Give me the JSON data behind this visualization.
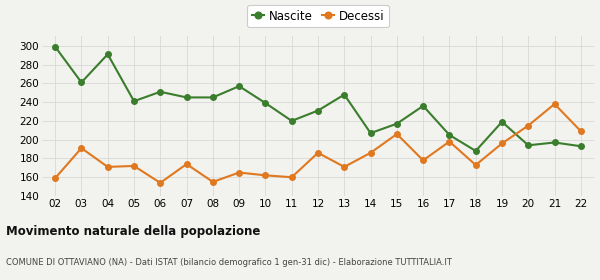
{
  "years": [
    "02",
    "03",
    "04",
    "05",
    "06",
    "07",
    "08",
    "09",
    "10",
    "11",
    "12",
    "13",
    "14",
    "15",
    "16",
    "17",
    "18",
    "19",
    "20",
    "21",
    "22"
  ],
  "nascite": [
    299,
    261,
    291,
    241,
    251,
    245,
    245,
    257,
    239,
    220,
    231,
    248,
    207,
    217,
    236,
    205,
    188,
    219,
    194,
    197,
    193
  ],
  "decessi": [
    159,
    191,
    171,
    172,
    154,
    174,
    155,
    165,
    162,
    160,
    186,
    171,
    186,
    206,
    178,
    198,
    173,
    196,
    215,
    238,
    209
  ],
  "nascite_color": "#3a7d2c",
  "decessi_color": "#e07820",
  "background_color": "#f2f2ee",
  "grid_color": "#d8d8d8",
  "ylim": [
    140,
    310
  ],
  "yticks": [
    140,
    160,
    180,
    200,
    220,
    240,
    260,
    280,
    300
  ],
  "title": "Movimento naturale della popolazione",
  "subtitle": "COMUNE DI OTTAVIANO (NA) - Dati ISTAT (bilancio demografico 1 gen-31 dic) - Elaborazione TUTTITALIA.IT",
  "legend_nascite": "Nascite",
  "legend_decessi": "Decessi",
  "marker_size": 4,
  "line_width": 1.5
}
